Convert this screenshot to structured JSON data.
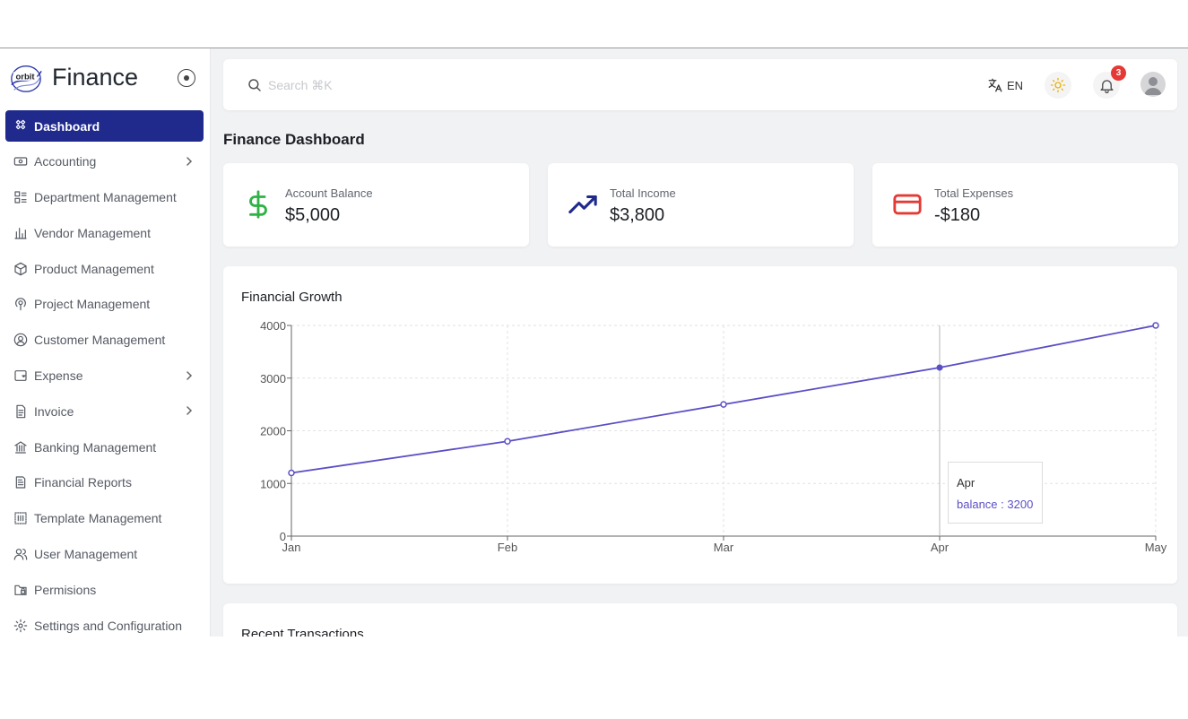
{
  "brand": {
    "name": "Finance",
    "logo_text": "orbit"
  },
  "sidebar": {
    "items": [
      {
        "label": "Dashboard",
        "icon": "dashboard-icon",
        "active": true,
        "has_submenu": false
      },
      {
        "label": "Accounting",
        "icon": "accounting-icon",
        "active": false,
        "has_submenu": true
      },
      {
        "label": "Department Management",
        "icon": "department-icon",
        "active": false,
        "has_submenu": false
      },
      {
        "label": "Vendor Management",
        "icon": "vendor-icon",
        "active": false,
        "has_submenu": false
      },
      {
        "label": "Product Management",
        "icon": "product-icon",
        "active": false,
        "has_submenu": false
      },
      {
        "label": "Project Management",
        "icon": "project-icon",
        "active": false,
        "has_submenu": false
      },
      {
        "label": "Customer Management",
        "icon": "customer-icon",
        "active": false,
        "has_submenu": false
      },
      {
        "label": "Expense",
        "icon": "expense-icon",
        "active": false,
        "has_submenu": true
      },
      {
        "label": "Invoice",
        "icon": "invoice-icon",
        "active": false,
        "has_submenu": true
      },
      {
        "label": "Banking Management",
        "icon": "bank-icon",
        "active": false,
        "has_submenu": false
      },
      {
        "label": "Financial Reports",
        "icon": "reports-icon",
        "active": false,
        "has_submenu": false
      },
      {
        "label": "Template Management",
        "icon": "template-icon",
        "active": false,
        "has_submenu": false
      },
      {
        "label": "User Management",
        "icon": "users-icon",
        "active": false,
        "has_submenu": false
      },
      {
        "label": "Permisions",
        "icon": "permissions-icon",
        "active": false,
        "has_submenu": false
      },
      {
        "label": "Settings and Configuration",
        "icon": "settings-icon",
        "active": false,
        "has_submenu": false
      }
    ]
  },
  "header": {
    "search_placeholder": "Search ⌘K",
    "language": "EN",
    "notification_count": "3"
  },
  "page": {
    "title": "Finance Dashboard"
  },
  "stats": [
    {
      "label": "Account Balance",
      "value": "$5,000",
      "icon": "dollar-icon",
      "color": "#2fb344"
    },
    {
      "label": "Total Income",
      "value": "$3,800",
      "icon": "trending-up-icon",
      "color": "#1f2a8c"
    },
    {
      "label": "Total Expenses",
      "value": "-$180",
      "icon": "credit-card-icon",
      "color": "#e53935"
    }
  ],
  "chart_title": "Financial Growth",
  "chart_data": {
    "type": "line",
    "categories": [
      "Jan",
      "Feb",
      "Mar",
      "Apr",
      "May"
    ],
    "series": [
      {
        "name": "balance",
        "values": [
          1200,
          1800,
          2500,
          3200,
          4000
        ]
      }
    ],
    "ylim": [
      0,
      4000
    ],
    "yticks": [
      0,
      1000,
      2000,
      3000,
      4000
    ],
    "grid": true,
    "line_color": "#5b4fc6",
    "tooltip": {
      "label": "Apr",
      "text": "balance : 3200"
    }
  },
  "recent_title": "Recent Transactions"
}
